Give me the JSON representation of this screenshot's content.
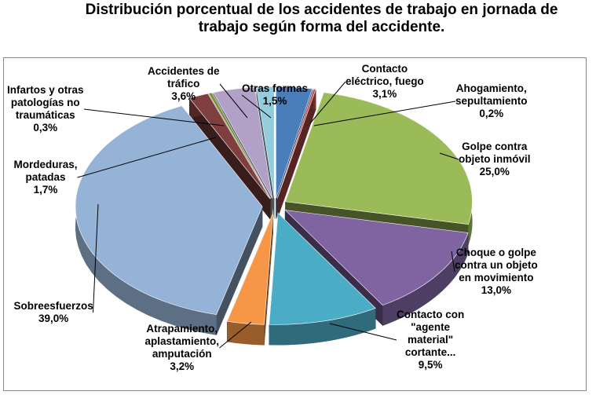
{
  "title": {
    "line1": "Distribución porcentual de los accidentes de trabajo en jornada de",
    "line2": "trabajo según forma del accidente."
  },
  "chart_data": {
    "type": "pie",
    "title": "Distribución porcentual de los accidentes de trabajo en jornada de trabajo según forma del accidente.",
    "unit": "%",
    "slices": [
      {
        "name": "Contacto eléctrico, fuego",
        "lines": [
          "Contacto",
          "eléctrico, fuego"
        ],
        "value": 3.1,
        "label": "3,1%",
        "color": "#4a7ebb"
      },
      {
        "name": "Ahogamiento, sepultamiento",
        "lines": [
          "Ahogamiento,",
          "sepultamiento"
        ],
        "value": 0.2,
        "label": "0,2%",
        "color": "#c0504d"
      },
      {
        "name": "Golpe contra objeto inmóvil",
        "lines": [
          "Golpe contra",
          "objeto inmóvil"
        ],
        "value": 25.0,
        "label": "25,0%",
        "color": "#9bbb59"
      },
      {
        "name": "Choque o golpe contra un objeto en movimiento",
        "lines": [
          "Choque o golpe",
          "contra un objeto",
          "en movimiento"
        ],
        "value": 13.0,
        "label": "13,0%",
        "color": "#8064a2"
      },
      {
        "name": "Contacto con \"agente material\" cortante...",
        "lines": [
          "Contacto con",
          "\"agente",
          "material\"",
          "cortante..."
        ],
        "value": 9.5,
        "label": "9,5%",
        "color": "#4bacc6"
      },
      {
        "name": "Atrapamiento, aplastamiento, amputación",
        "lines": [
          "Atrapamiento,",
          "aplastamiento,",
          "amputación"
        ],
        "value": 3.2,
        "label": "3,2%",
        "color": "#f79646"
      },
      {
        "name": "Sobreesfuerzos",
        "lines": [
          "Sobreesfuerzos"
        ],
        "value": 39.0,
        "label": "39,0%",
        "color": "#95b3d7"
      },
      {
        "name": "Mordeduras, patadas",
        "lines": [
          "Mordeduras,",
          "patadas"
        ],
        "value": 1.7,
        "label": "1,7%",
        "color": "#7f3f3f"
      },
      {
        "name": "Infartos y otras patologías no traumáticas",
        "lines": [
          "Infartos y otras",
          "patologías no",
          "traumáticas"
        ],
        "value": 0.3,
        "label": "0,3%",
        "color": "#77933c"
      },
      {
        "name": "Accidentes de tráfico",
        "lines": [
          "Accidentes de",
          "tráfico"
        ],
        "value": 3.6,
        "label": "3,6%",
        "color": "#b2a1c7"
      },
      {
        "name": "Otras formas",
        "lines": [
          "Otras formas"
        ],
        "value": 1.5,
        "label": "1,5%",
        "color": "#93cddd"
      }
    ],
    "legend": "none",
    "style": "3d-exploded"
  }
}
